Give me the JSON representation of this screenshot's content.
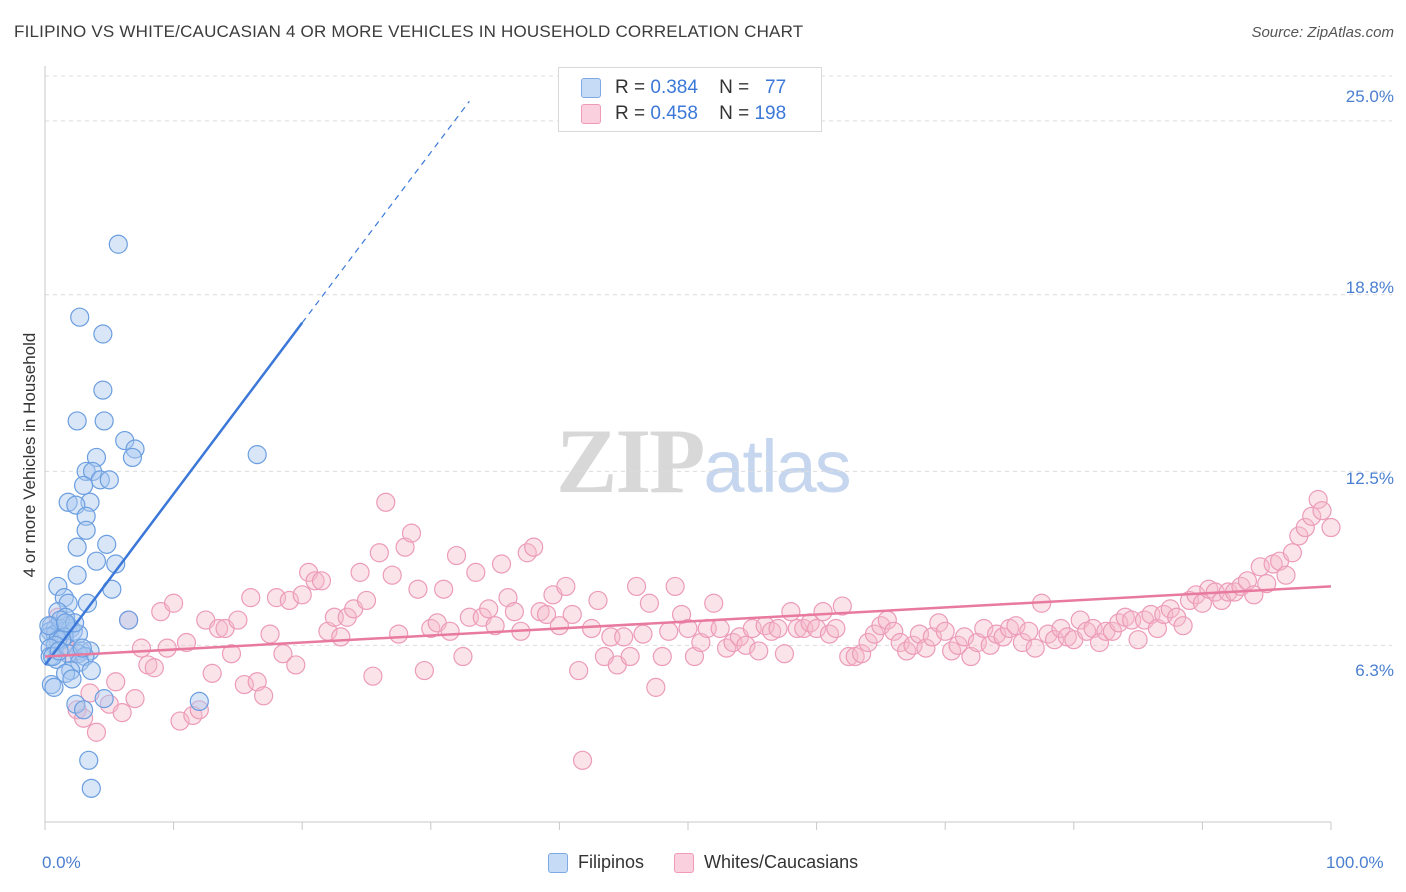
{
  "title": "FILIPINO VS WHITE/CAUCASIAN 4 OR MORE VEHICLES IN HOUSEHOLD CORRELATION CHART",
  "source": "Source: ZipAtlas.com",
  "watermark": {
    "zip": "ZIP",
    "atlas": "atlas"
  },
  "legend_top": [
    {
      "r_label": "R =",
      "r_value": "0.384",
      "n_label": "N =",
      "n_value": "77",
      "color": "#a8c8f0"
    },
    {
      "r_label": "R =",
      "r_value": "0.458",
      "n_label": "N =",
      "n_value": "198",
      "color": "#f4b8cb"
    }
  ],
  "legend_bottom": [
    "Filipinos",
    "Whites/Caucasians"
  ],
  "colors": {
    "blue": "#3b78d8",
    "blue_fill": "#a8c8f0",
    "pink": "#e87aa0",
    "pink_fill": "#f4b8cb",
    "tick": "#4a7fd0"
  },
  "chart_data": {
    "type": "scatter",
    "title": "FILIPINO VS WHITE/CAUCASIAN 4 OR MORE VEHICLES IN HOUSEHOLD CORRELATION CHART",
    "xlabel": "",
    "ylabel": "4 or more Vehicles in Household",
    "xlim": [
      0,
      100
    ],
    "ylim": [
      0,
      26.6
    ],
    "x_tick_labels": [
      "0.0%",
      "100.0%"
    ],
    "y_ticks": [
      6.3,
      12.5,
      18.8,
      25.0
    ],
    "y_tick_labels": [
      "6.3%",
      "12.5%",
      "18.8%",
      "25.0%"
    ],
    "grid": "horizontal dashed",
    "legend_position": "top-center",
    "series": [
      {
        "name": "Filipinos",
        "trend": {
          "x": [
            0,
            20
          ],
          "y": [
            5.6,
            17.8
          ],
          "extended_to": [
            33,
            25.7
          ]
        },
        "points": [
          [
            5.7,
            20.6
          ],
          [
            2.7,
            18
          ],
          [
            4.5,
            17.4
          ],
          [
            4.5,
            15.4
          ],
          [
            2.5,
            14.3
          ],
          [
            4.6,
            14.3
          ],
          [
            6.2,
            13.6
          ],
          [
            7,
            13.3
          ],
          [
            6.8,
            13
          ],
          [
            16.5,
            13.1
          ],
          [
            4,
            13
          ],
          [
            3.2,
            12.5
          ],
          [
            3.7,
            12.5
          ],
          [
            4.3,
            12.2
          ],
          [
            5,
            12.2
          ],
          [
            3,
            12
          ],
          [
            1.8,
            11.4
          ],
          [
            3.5,
            11.4
          ],
          [
            2.4,
            11.3
          ],
          [
            3.2,
            10.9
          ],
          [
            3.2,
            10.4
          ],
          [
            2.5,
            9.8
          ],
          [
            4.8,
            9.9
          ],
          [
            4,
            9.3
          ],
          [
            5.5,
            9.2
          ],
          [
            2.5,
            8.8
          ],
          [
            1,
            8.4
          ],
          [
            5.2,
            8.3
          ],
          [
            1.5,
            8
          ],
          [
            3.3,
            7.8
          ],
          [
            1.8,
            7.8
          ],
          [
            1,
            7.5
          ],
          [
            1.6,
            7.3
          ],
          [
            6.5,
            7.2
          ],
          [
            0.5,
            7
          ],
          [
            1.8,
            7
          ],
          [
            0.8,
            6.9
          ],
          [
            1.2,
            6.9
          ],
          [
            0.4,
            6.8
          ],
          [
            1.5,
            6.8
          ],
          [
            2,
            6.9
          ],
          [
            2.2,
            6.8
          ],
          [
            0.8,
            6.7
          ],
          [
            1.5,
            6.6
          ],
          [
            2.6,
            6.7
          ],
          [
            0.3,
            6.6
          ],
          [
            1,
            6.5
          ],
          [
            1.3,
            6.5
          ],
          [
            0.8,
            6.3
          ],
          [
            0.4,
            6.2
          ],
          [
            2.8,
            6.1
          ],
          [
            3.5,
            6.1
          ],
          [
            2.6,
            6
          ],
          [
            1.8,
            6
          ],
          [
            3.1,
            5.9
          ],
          [
            0.4,
            5.9
          ],
          [
            0.9,
            5.8
          ],
          [
            2.7,
            5.7
          ],
          [
            3.6,
            5.4
          ],
          [
            2,
            5.4
          ],
          [
            1.6,
            5.3
          ],
          [
            2.1,
            5.1
          ],
          [
            0.5,
            4.9
          ],
          [
            0.7,
            4.8
          ],
          [
            4.6,
            4.4
          ],
          [
            12,
            4.3
          ],
          [
            2.4,
            4.2
          ],
          [
            3,
            4
          ],
          [
            3.4,
            2.2
          ],
          [
            3.6,
            1.2
          ],
          [
            0.6,
            5.9
          ],
          [
            1.2,
            7.2
          ],
          [
            2.3,
            7.1
          ],
          [
            0.3,
            7
          ],
          [
            1.6,
            7.1
          ],
          [
            2.9,
            6.2
          ],
          [
            1.1,
            6.1
          ]
        ]
      },
      {
        "name": "Whites/Caucasians",
        "trend": {
          "x": [
            0,
            100
          ],
          "y": [
            5.9,
            8.4
          ]
        },
        "points": [
          [
            1,
            7.3
          ],
          [
            1.5,
            6.3
          ],
          [
            2,
            6
          ],
          [
            2.5,
            4
          ],
          [
            3,
            3.7
          ],
          [
            3.5,
            4.6
          ],
          [
            4,
            3.2
          ],
          [
            5,
            4.2
          ],
          [
            5.5,
            5
          ],
          [
            6,
            3.9
          ],
          [
            6.5,
            7.2
          ],
          [
            7,
            4.4
          ],
          [
            7.5,
            6.2
          ],
          [
            8,
            5.6
          ],
          [
            8.5,
            5.5
          ],
          [
            9,
            7.5
          ],
          [
            9.5,
            6.2
          ],
          [
            10,
            7.8
          ],
          [
            10.5,
            3.6
          ],
          [
            11,
            6.4
          ],
          [
            11.5,
            3.8
          ],
          [
            12,
            4
          ],
          [
            12.5,
            7.2
          ],
          [
            13,
            5.3
          ],
          [
            13.5,
            6.9
          ],
          [
            14,
            6.9
          ],
          [
            14.5,
            6
          ],
          [
            15,
            7.2
          ],
          [
            15.5,
            4.9
          ],
          [
            16,
            8
          ],
          [
            16.5,
            5
          ],
          [
            17,
            4.5
          ],
          [
            17.5,
            6.7
          ],
          [
            18,
            8
          ],
          [
            18.5,
            6
          ],
          [
            19,
            7.9
          ],
          [
            19.5,
            5.6
          ],
          [
            20,
            8.1
          ],
          [
            20.5,
            8.9
          ],
          [
            21,
            8.6
          ],
          [
            21.5,
            8.6
          ],
          [
            22,
            6.8
          ],
          [
            22.5,
            7.3
          ],
          [
            23,
            6.6
          ],
          [
            23.5,
            7.3
          ],
          [
            24,
            7.6
          ],
          [
            24.5,
            8.9
          ],
          [
            25,
            7.9
          ],
          [
            25.5,
            5.2
          ],
          [
            26,
            9.6
          ],
          [
            26.5,
            11.4
          ],
          [
            27,
            8.8
          ],
          [
            27.5,
            6.7
          ],
          [
            28,
            9.8
          ],
          [
            28.5,
            10.3
          ],
          [
            29,
            8.3
          ],
          [
            29.5,
            5.4
          ],
          [
            30,
            6.9
          ],
          [
            30.5,
            7.1
          ],
          [
            31,
            8.3
          ],
          [
            31.5,
            6.8
          ],
          [
            32,
            9.5
          ],
          [
            32.5,
            5.9
          ],
          [
            33,
            7.3
          ],
          [
            33.5,
            8.9
          ],
          [
            34,
            7.3
          ],
          [
            34.5,
            7.6
          ],
          [
            35,
            7
          ],
          [
            35.5,
            9.2
          ],
          [
            36,
            8
          ],
          [
            36.5,
            7.5
          ],
          [
            37,
            6.8
          ],
          [
            37.5,
            9.6
          ],
          [
            38,
            9.8
          ],
          [
            38.5,
            7.5
          ],
          [
            39,
            7.4
          ],
          [
            39.5,
            8.1
          ],
          [
            40,
            7
          ],
          [
            40.5,
            8.4
          ],
          [
            41,
            7.4
          ],
          [
            41.5,
            5.4
          ],
          [
            41.8,
            2.2
          ],
          [
            42.5,
            6.9
          ],
          [
            43,
            7.9
          ],
          [
            43.5,
            5.9
          ],
          [
            44,
            6.6
          ],
          [
            44.5,
            5.6
          ],
          [
            45,
            6.6
          ],
          [
            45.5,
            5.9
          ],
          [
            46,
            8.4
          ],
          [
            46.5,
            6.7
          ],
          [
            47,
            7.8
          ],
          [
            47.5,
            4.8
          ],
          [
            48,
            5.9
          ],
          [
            48.5,
            6.8
          ],
          [
            49,
            8.4
          ],
          [
            49.5,
            7.4
          ],
          [
            50,
            6.9
          ],
          [
            50.5,
            5.9
          ],
          [
            51,
            6.4
          ],
          [
            51.5,
            6.9
          ],
          [
            52,
            7.8
          ],
          [
            52.5,
            6.9
          ],
          [
            53,
            6.2
          ],
          [
            53.5,
            6.4
          ],
          [
            54,
            6.6
          ],
          [
            54.5,
            6.3
          ],
          [
            55,
            6.9
          ],
          [
            55.5,
            6.1
          ],
          [
            56,
            7
          ],
          [
            56.5,
            6.8
          ],
          [
            57,
            6.9
          ],
          [
            57.5,
            6
          ],
          [
            58,
            7.5
          ],
          [
            58.5,
            6.9
          ],
          [
            59,
            6.9
          ],
          [
            59.5,
            7.1
          ],
          [
            60,
            6.9
          ],
          [
            60.5,
            7.5
          ],
          [
            61,
            6.7
          ],
          [
            61.5,
            6.9
          ],
          [
            62,
            7.7
          ],
          [
            62.5,
            5.9
          ],
          [
            63,
            5.9
          ],
          [
            63.5,
            6
          ],
          [
            64,
            6.4
          ],
          [
            64.5,
            6.7
          ],
          [
            65,
            7
          ],
          [
            65.5,
            7.2
          ],
          [
            66,
            6.8
          ],
          [
            66.5,
            6.4
          ],
          [
            67,
            6.1
          ],
          [
            67.5,
            6.3
          ],
          [
            68,
            6.7
          ],
          [
            68.5,
            6.2
          ],
          [
            69,
            6.6
          ],
          [
            69.5,
            7.1
          ],
          [
            70,
            6.8
          ],
          [
            70.5,
            6.1
          ],
          [
            71,
            6.3
          ],
          [
            71.5,
            6.6
          ],
          [
            72,
            5.9
          ],
          [
            72.5,
            6.4
          ],
          [
            73,
            6.9
          ],
          [
            73.5,
            6.3
          ],
          [
            74,
            6.7
          ],
          [
            74.5,
            6.6
          ],
          [
            75,
            6.9
          ],
          [
            75.5,
            7
          ],
          [
            76,
            6.4
          ],
          [
            76.5,
            6.8
          ],
          [
            77,
            6.2
          ],
          [
            77.5,
            7.8
          ],
          [
            78,
            6.7
          ],
          [
            78.5,
            6.5
          ],
          [
            79,
            6.9
          ],
          [
            79.5,
            6.6
          ],
          [
            80,
            6.5
          ],
          [
            80.5,
            7.2
          ],
          [
            81,
            6.8
          ],
          [
            81.5,
            6.9
          ],
          [
            82,
            6.4
          ],
          [
            82.5,
            6.8
          ],
          [
            83,
            6.8
          ],
          [
            83.5,
            7.1
          ],
          [
            84,
            7.3
          ],
          [
            84.5,
            7.2
          ],
          [
            85,
            6.5
          ],
          [
            85.5,
            7.2
          ],
          [
            86,
            7.4
          ],
          [
            86.5,
            6.9
          ],
          [
            87,
            7.4
          ],
          [
            87.5,
            7.6
          ],
          [
            88,
            7.3
          ],
          [
            88.5,
            7
          ],
          [
            89,
            7.9
          ],
          [
            89.5,
            8.1
          ],
          [
            90,
            7.8
          ],
          [
            90.5,
            8.3
          ],
          [
            91,
            8.2
          ],
          [
            91.5,
            7.9
          ],
          [
            92,
            8.2
          ],
          [
            92.5,
            8.2
          ],
          [
            93,
            8.4
          ],
          [
            93.5,
            8.6
          ],
          [
            94,
            8.1
          ],
          [
            94.5,
            9.1
          ],
          [
            95,
            8.5
          ],
          [
            95.5,
            9.2
          ],
          [
            96,
            9.3
          ],
          [
            96.5,
            8.8
          ],
          [
            97,
            9.6
          ],
          [
            97.5,
            10.2
          ],
          [
            98,
            10.5
          ],
          [
            98.5,
            10.9
          ],
          [
            99,
            11.5
          ],
          [
            99.3,
            11.1
          ],
          [
            100,
            10.5
          ]
        ]
      }
    ]
  }
}
